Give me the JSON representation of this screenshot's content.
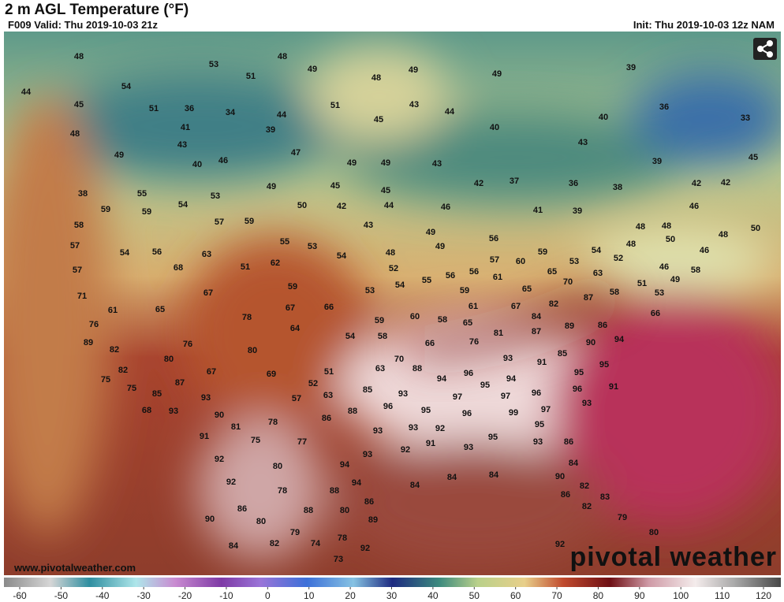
{
  "header": {
    "title": "2 m AGL Temperature (°F)",
    "valid": "F009 Valid: Thu 2019-10-03 21z",
    "init": "Init: Thu 2019-10-03 12z NAM"
  },
  "footer": {
    "website": "www.pivotalweather.com",
    "brand": "pivotal weather"
  },
  "colorbar": {
    "lim": [
      -60,
      120
    ],
    "ticks": [
      -60,
      -50,
      -40,
      -30,
      -20,
      -10,
      0,
      10,
      20,
      30,
      40,
      50,
      60,
      70,
      80,
      90,
      100,
      110,
      120
    ]
  },
  "map_labels": [
    48,
    53,
    48,
    49,
    48,
    49,
    49,
    39,
    44,
    54,
    51,
    51,
    43,
    44,
    36,
    45,
    51,
    36,
    34,
    44,
    45,
    40,
    33,
    41,
    39,
    40,
    48,
    43,
    47,
    43,
    49,
    40,
    46,
    49,
    49,
    43,
    39,
    45,
    38,
    55,
    54,
    53,
    49,
    45,
    45,
    42,
    37,
    36,
    38,
    42,
    42,
    59,
    59,
    50,
    42,
    44,
    46,
    41,
    39,
    46,
    58,
    57,
    59,
    43,
    49,
    48,
    48,
    48,
    50,
    57,
    54,
    56,
    63,
    55,
    53,
    54,
    48,
    49,
    56,
    59,
    54,
    48,
    50,
    46,
    57,
    68,
    51,
    62,
    52,
    57,
    60,
    53,
    52,
    46,
    58,
    54,
    55,
    56,
    56,
    61,
    65,
    70,
    63,
    51,
    49,
    71,
    67,
    59,
    53,
    59,
    65,
    58,
    53,
    61,
    65,
    67,
    66,
    61,
    67,
    82,
    87,
    76,
    78,
    64,
    59,
    60,
    58,
    65,
    84,
    89,
    86,
    66,
    81,
    89,
    76,
    80,
    54,
    58,
    66,
    76,
    87,
    90,
    94,
    82,
    80,
    69,
    70,
    93,
    91,
    85,
    95,
    82,
    67,
    51,
    63,
    88,
    96,
    95,
    94,
    75,
    87,
    52,
    63,
    85,
    93,
    95,
    94,
    96,
    96,
    91,
    75,
    85,
    93,
    57,
    97,
    97,
    93,
    68,
    93,
    90,
    88,
    86,
    96,
    95,
    96,
    99,
    97,
    81,
    78,
    93,
    92,
    95,
    91,
    75,
    77,
    93,
    91,
    95,
    93,
    86,
    92,
    93,
    92,
    93,
    84,
    80,
    94,
    84,
    84,
    90,
    92,
    78,
    94,
    84,
    82,
    83,
    86,
    86,
    88,
    86,
    80,
    82,
    90,
    80,
    88,
    89,
    79,
    84,
    82,
    79,
    74,
    78,
    92,
    80,
    73,
    92
  ]
}
